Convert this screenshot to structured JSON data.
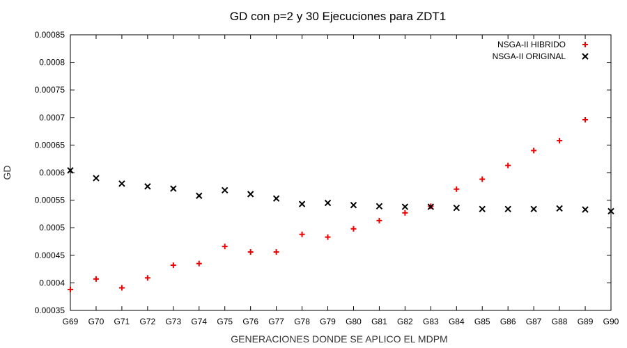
{
  "chart_data": {
    "type": "scatter",
    "title": "GD con p=2 y 30 Ejecuciones para ZDT1",
    "xlabel": "GENERACIONES DONDE SE APLICO EL MDPM",
    "ylabel": "GD",
    "categories": [
      "G69",
      "G70",
      "G71",
      "G72",
      "G73",
      "G74",
      "G75",
      "G76",
      "G77",
      "G78",
      "G79",
      "G80",
      "G81",
      "G82",
      "G83",
      "G84",
      "G85",
      "G86",
      "G87",
      "G88",
      "G89",
      "G90"
    ],
    "ylim": [
      0.00035,
      0.00085
    ],
    "yticks": [
      "0.00035",
      "0.0004",
      "0.00045",
      "0.0005",
      "0.00055",
      "0.0006",
      "0.00065",
      "0.0007",
      "0.00075",
      "0.0008",
      "0.00085"
    ],
    "grid": false,
    "legend_position": "top-right",
    "series": [
      {
        "name": "NSGA-II HIBRIDO",
        "marker": "plus",
        "color": "#ee0000",
        "values": [
          0.000388,
          0.000407,
          0.000391,
          0.000409,
          0.000432,
          0.000435,
          0.000466,
          0.000456,
          0.000456,
          0.000488,
          0.000483,
          0.000498,
          0.000513,
          0.000527,
          0.000539,
          0.00057,
          0.000588,
          0.000613,
          0.00064,
          0.000658,
          0.000696,
          null
        ]
      },
      {
        "name": "NSGA-II ORIGINAL",
        "marker": "cross",
        "color": "#000000",
        "values": [
          0.000604,
          0.00059,
          0.00058,
          0.000575,
          0.000571,
          0.000558,
          0.000568,
          0.000561,
          0.000553,
          0.000543,
          0.000545,
          0.000541,
          0.000539,
          0.000538,
          0.000538,
          0.000536,
          0.000534,
          0.000534,
          0.000534,
          0.000535,
          0.000533,
          0.00053
        ]
      }
    ]
  }
}
